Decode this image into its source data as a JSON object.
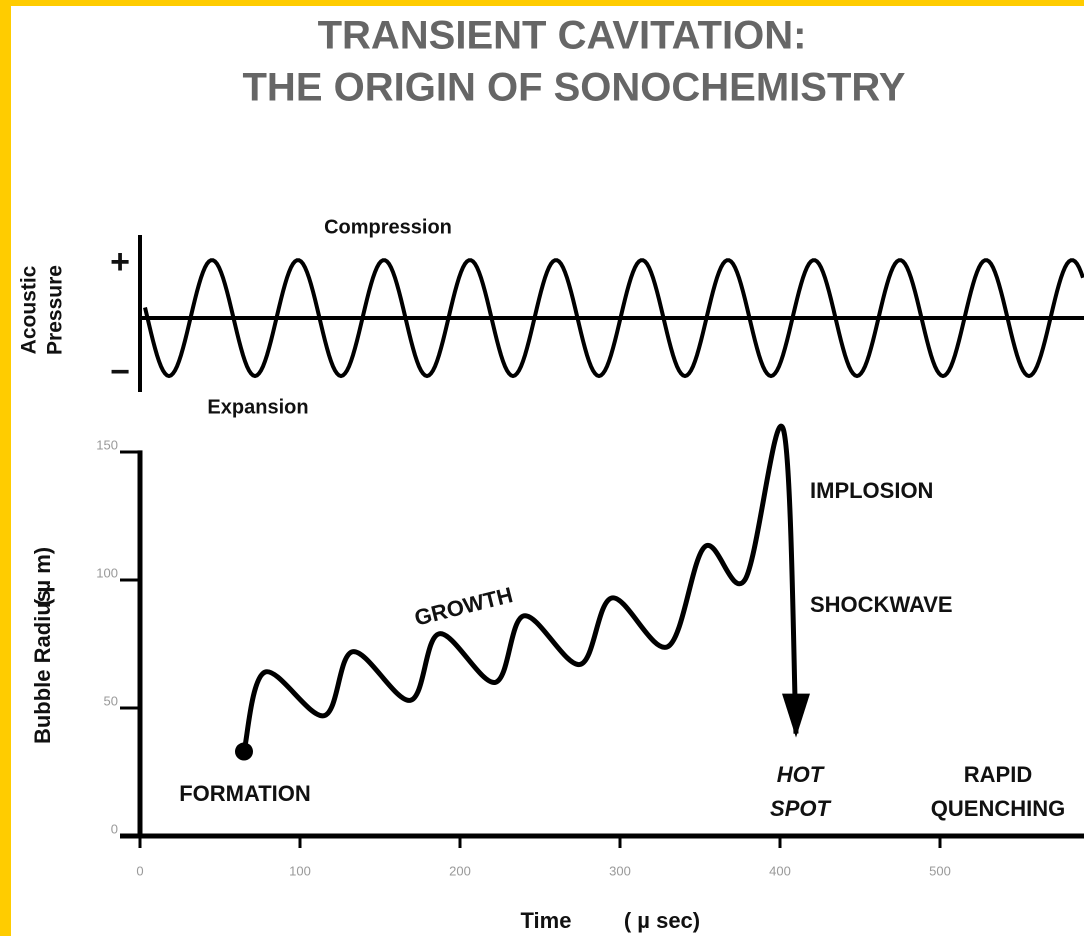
{
  "chart_data": {
    "type": "line",
    "title": [
      "TRANSIENT CAVITATION:",
      "THE ORIGIN OF SONOCHEMISTRY"
    ],
    "pressure_label": [
      "Acoustic",
      "Pressure"
    ],
    "pressure_signs": [
      "+",
      "−"
    ],
    "compression": "Compression",
    "expansion": "Expansion",
    "ylabel": [
      "Bubble Radius",
      "( µ m)"
    ],
    "xlabel": [
      "Time",
      "( µ sec)"
    ],
    "annotations": {
      "formation": "FORMATION",
      "growth": "GROWTH",
      "implosion": "IMPLOSION",
      "shockwave": "SHOCKWAVE",
      "hot_spot": [
        "HOT",
        "SPOT"
      ],
      "quenching": [
        "RAPID",
        "QUENCHING"
      ]
    },
    "x": [
      65,
      78,
      115,
      133,
      169,
      187,
      222,
      240,
      275,
      295,
      330,
      353,
      378,
      402,
      410
    ],
    "values": [
      33,
      64,
      47,
      72,
      53,
      79,
      60,
      86,
      67,
      93,
      74,
      113,
      100,
      159,
      40
    ],
    "color": "#000000",
    "xlim": [
      0,
      590
    ],
    "ylim": [
      0,
      160
    ],
    "xticks": [
      0,
      100,
      200,
      300,
      400,
      500
    ],
    "yticks": [
      0,
      50,
      100,
      150
    ]
  }
}
